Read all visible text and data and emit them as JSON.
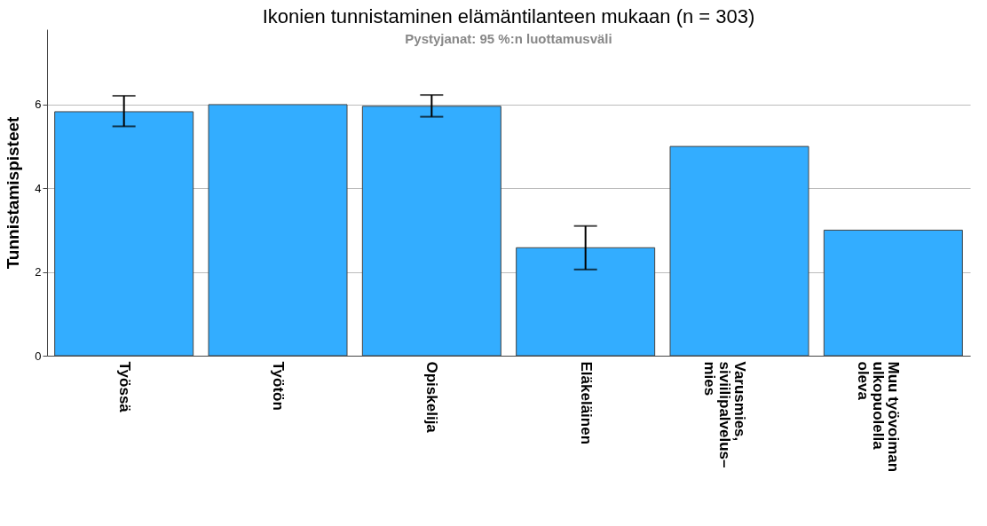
{
  "chart_data": {
    "type": "bar",
    "title": "Ikonien tunnistaminen elämäntilanteen mukaan (n = 303)",
    "subtitle": "Pystyjanat: 95 %:n luottamusväli",
    "ylabel": "Tunnistamispisteet",
    "categories": [
      "Työssä",
      "Työtön",
      "Opiskelija",
      "Eläkeläinen",
      "Varusmies,\nsiviilipalvelus–\nmies",
      "Muu työvoiman\nulkopuolella\noleva"
    ],
    "values": [
      5.83,
      6.0,
      5.96,
      2.58,
      5.0,
      3.0
    ],
    "errors": [
      [
        5.48,
        6.21
      ],
      null,
      [
        5.71,
        6.23
      ],
      [
        2.06,
        3.1
      ],
      null,
      null
    ],
    "color": "#33adff",
    "ylim": [
      0,
      7.8
    ],
    "yticks": [
      0,
      2,
      4,
      6
    ],
    "grid": "y"
  }
}
